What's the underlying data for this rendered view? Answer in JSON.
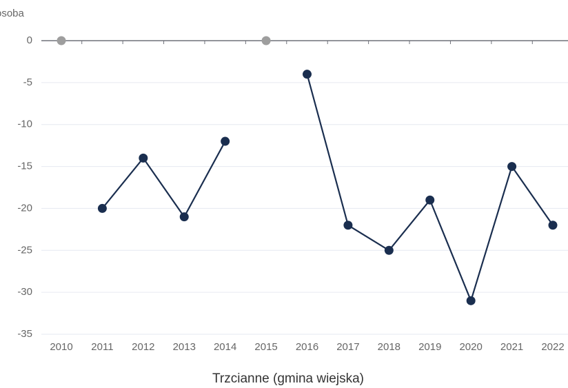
{
  "chart_data": {
    "type": "line",
    "y_label": "osoba",
    "title": "Trzcianne (gmina wiejska)",
    "categories": [
      "2010",
      "2011",
      "2012",
      "2013",
      "2014",
      "2015",
      "2016",
      "2017",
      "2018",
      "2019",
      "2020",
      "2021",
      "2022"
    ],
    "series": [
      {
        "name": "Trzcianne (gmina wiejska)",
        "color": "#1a2e4f",
        "values": [
          null,
          -20,
          -14,
          -21,
          -12,
          null,
          -4,
          -22,
          -25,
          -19,
          -31,
          -15,
          -22
        ]
      }
    ],
    "null_marker_color": "#9e9e9e",
    "ylim": [
      -35,
      0
    ],
    "yticks": [
      0,
      -5,
      -10,
      -15,
      -20,
      -25,
      -30,
      -35
    ],
    "grid": true
  }
}
